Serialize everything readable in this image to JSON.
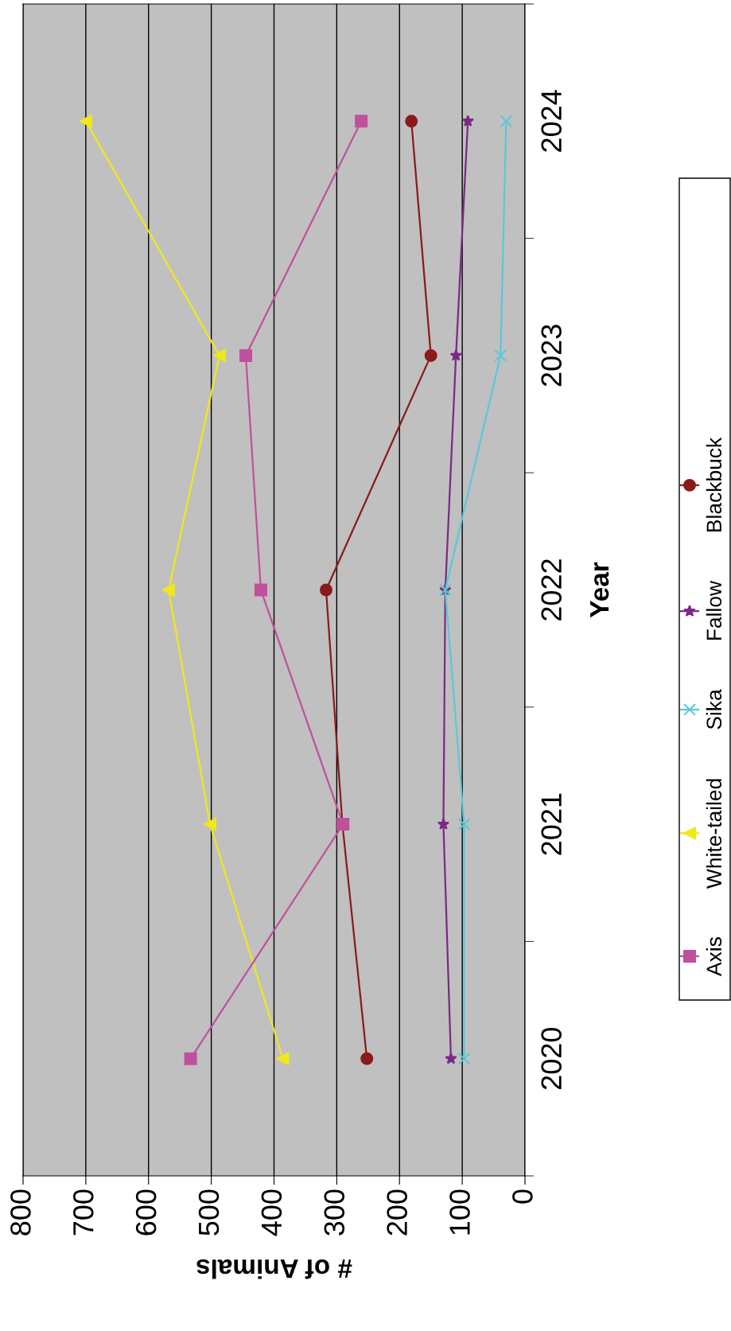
{
  "chart_data": {
    "type": "line",
    "orientation": "horizontal",
    "xlabel": "# of Animals",
    "ylabel": "Year",
    "categories": [
      "2024",
      "2023",
      "2022",
      "2021",
      "2020"
    ],
    "xlim": [
      800,
      0
    ],
    "xticks": [
      800,
      700,
      600,
      500,
      400,
      300,
      200,
      100,
      0
    ],
    "grid": "x",
    "legend": "right",
    "series": [
      {
        "name": "Axis",
        "color": "#c0509e",
        "marker": "square",
        "values": [
          261,
          445,
          421,
          290,
          533
        ]
      },
      {
        "name": "White-tailed",
        "color": "#f0e81a",
        "marker": "triangle",
        "values": [
          700,
          487,
          568,
          502,
          386
        ]
      },
      {
        "name": "Sika",
        "color": "#5bc8d8",
        "marker": "cross",
        "values": [
          30,
          39,
          127,
          97,
          97
        ]
      },
      {
        "name": "Fallow",
        "color": "#7b2a84",
        "marker": "star",
        "values": [
          91,
          110,
          127,
          130,
          118
        ]
      },
      {
        "name": "Blackbuck",
        "color": "#8b1a1a",
        "marker": "circle",
        "values": [
          181,
          150,
          317,
          291,
          252
        ]
      }
    ]
  }
}
